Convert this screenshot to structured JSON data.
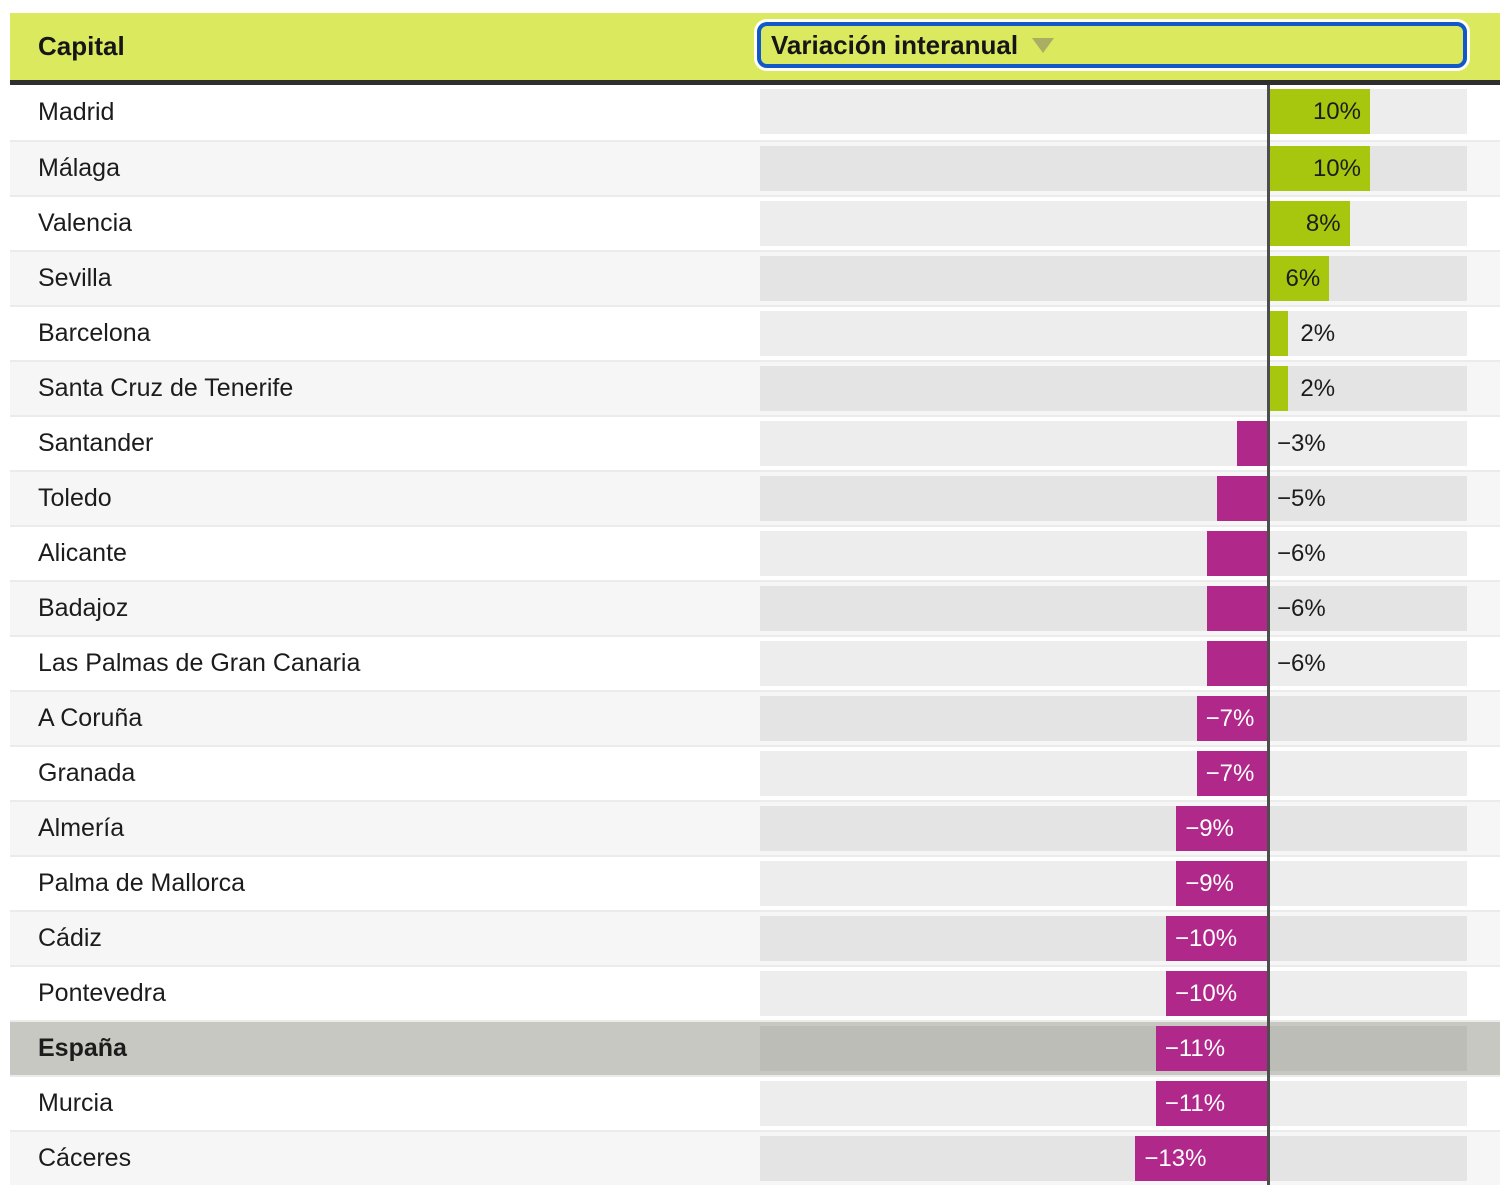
{
  "table": {
    "column_headers": {
      "capital": "Capital",
      "variation": "Variación interanual"
    },
    "sort_indicator_icon": "triangle-down-icon"
  },
  "chart_data": {
    "type": "bar",
    "orientation": "horizontal",
    "title": "",
    "xlabel": "Capital",
    "ylabel": "Variación interanual",
    "value_suffix": "%",
    "xlim": [
      -50,
      20
    ],
    "grid": false,
    "sorted_by": "Variación interanual",
    "sort_order": "descending",
    "highlighted_category": "España",
    "categories": [
      "Madrid",
      "Málaga",
      "Valencia",
      "Sevilla",
      "Barcelona",
      "Santa Cruz de Tenerife",
      "Santander",
      "Toledo",
      "Alicante",
      "Badajoz",
      "Las Palmas de Gran Canaria",
      "A Coruña",
      "Granada",
      "Almería",
      "Palma de Mallorca",
      "Cádiz",
      "Pontevedra",
      "España",
      "Murcia",
      "Cáceres"
    ],
    "values": [
      10,
      10,
      8,
      6,
      2,
      2,
      -3,
      -5,
      -6,
      -6,
      -6,
      -7,
      -7,
      -9,
      -9,
      -10,
      -10,
      -11,
      -11,
      -13
    ]
  },
  "colors": {
    "header_bg": "#dbe95f",
    "positive_bar": "#a6c70e",
    "negative_bar": "#b0288a",
    "highlight_row_bg": "#c8c8c2",
    "focus_ring": "#1158cb",
    "zero_line": "#4d4d4d",
    "sort_icon": "#a9ae63"
  }
}
